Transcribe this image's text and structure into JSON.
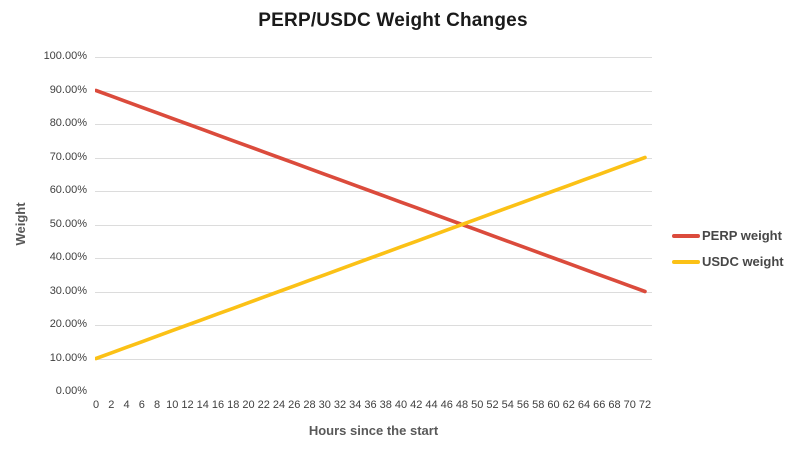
{
  "chart_data": {
    "type": "line",
    "title": "PERP/USDC Weight Changes",
    "xlabel": "Hours since the start",
    "ylabel": "Weight",
    "xlim": [
      0,
      72
    ],
    "ylim": [
      0,
      100
    ],
    "grid": "horizontal",
    "legend_position": "right",
    "x": [
      0,
      2,
      4,
      6,
      8,
      10,
      12,
      14,
      16,
      18,
      20,
      22,
      24,
      26,
      28,
      30,
      32,
      34,
      36,
      38,
      40,
      42,
      44,
      46,
      48,
      50,
      52,
      54,
      56,
      58,
      60,
      62,
      64,
      66,
      68,
      70,
      72
    ],
    "xtick_labels": [
      "0",
      "2",
      "4",
      "6",
      "8",
      "10",
      "12",
      "14",
      "16",
      "18",
      "20",
      "22",
      "24",
      "26",
      "28",
      "30",
      "32",
      "34",
      "36",
      "38",
      "40",
      "42",
      "44",
      "46",
      "48",
      "50",
      "52",
      "54",
      "56",
      "58",
      "60",
      "62",
      "64",
      "66",
      "68",
      "70",
      "72"
    ],
    "yticks": [
      0,
      10,
      20,
      30,
      40,
      50,
      60,
      70,
      80,
      90,
      100
    ],
    "ytick_labels": [
      "0.00%",
      "10.00%",
      "20.00%",
      "30.00%",
      "40.00%",
      "50.00%",
      "60.00%",
      "70.00%",
      "80.00%",
      "90.00%",
      "100.00%"
    ],
    "series": [
      {
        "name": "PERP weight",
        "color": "#DB4B3C",
        "values": [
          90,
          88.33,
          86.67,
          85,
          83.33,
          81.67,
          80,
          78.33,
          76.67,
          75,
          73.33,
          71.67,
          70,
          68.33,
          66.67,
          65,
          63.33,
          61.67,
          60,
          58.33,
          56.67,
          55,
          53.33,
          51.67,
          50,
          48.33,
          46.67,
          45,
          43.33,
          41.67,
          40,
          38.33,
          36.67,
          35,
          33.33,
          31.67,
          30
        ]
      },
      {
        "name": "USDC weight",
        "color": "#FBC116",
        "values": [
          10,
          11.67,
          13.33,
          15,
          16.67,
          18.33,
          20,
          21.67,
          23.33,
          25,
          26.67,
          28.33,
          30,
          31.67,
          33.33,
          35,
          36.67,
          38.33,
          40,
          41.67,
          43.33,
          45,
          46.67,
          48.33,
          50,
          51.67,
          53.33,
          55,
          56.67,
          58.33,
          60,
          61.67,
          63.33,
          65,
          66.67,
          68.33,
          70
        ]
      }
    ]
  },
  "colors": {
    "background": "#FFFFFF",
    "grid": "#DCDCDC",
    "title_text": "#1A1A1A",
    "tick_text": "#404040",
    "axis_title_text": "#595959",
    "legend_text": "#474747"
  }
}
